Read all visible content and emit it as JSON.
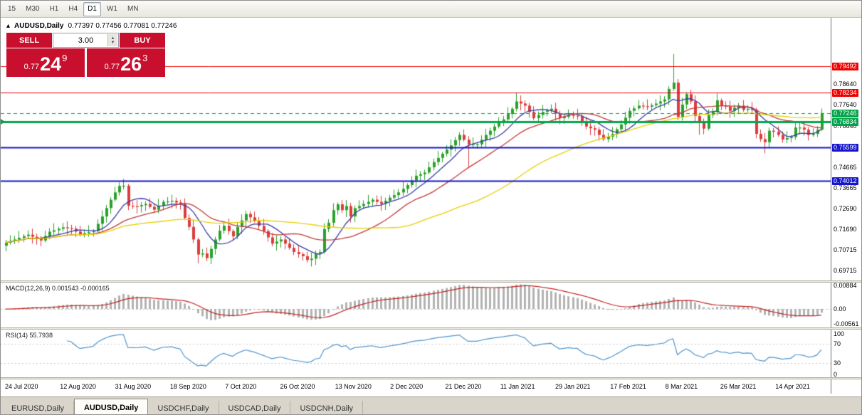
{
  "toolbar": {
    "timeframes": [
      "15",
      "M30",
      "H1",
      "H4",
      "D1",
      "W1",
      "MN"
    ],
    "active": "D1"
  },
  "chart_header": {
    "collapse_icon": "▴",
    "title": "AUDUSD,Daily",
    "ohlc": "0.77397 0.77456 0.77081 0.77246"
  },
  "trade_panel": {
    "sell_label": "SELL",
    "buy_label": "BUY",
    "lots": "3.00",
    "sell_price": {
      "small": "0.77",
      "big": "24",
      "sup": "9"
    },
    "buy_price": {
      "small": "0.77",
      "big": "26",
      "sup": "3"
    },
    "panel_color": "#c8102e"
  },
  "colors": {
    "up": "#2ba12b",
    "down": "#dc3c3c",
    "macd_bar": "#b2b2b2",
    "macd_signal": "#c32222",
    "rsi_line": "#4f94cd"
  },
  "chart_data": {
    "type": "candlestick+indicators",
    "symbol": "AUDUSD",
    "timeframe": "Daily",
    "main": {
      "ylim": [
        0.6924,
        0.818
      ],
      "first_open": 0.709,
      "closes": [
        0.7105,
        0.7113,
        0.712,
        0.7128,
        0.7136,
        0.7143,
        0.7133,
        0.7124,
        0.7115,
        0.7136,
        0.7157,
        0.7164,
        0.7171,
        0.7178,
        0.7175,
        0.7172,
        0.7158,
        0.7145,
        0.715,
        0.7155,
        0.716,
        0.7195,
        0.723,
        0.727,
        0.731,
        0.7345,
        0.7376,
        0.7377,
        0.7281,
        0.7279,
        0.7278,
        0.7284,
        0.729,
        0.7276,
        0.7262,
        0.7281,
        0.73,
        0.7302,
        0.7305,
        0.7297,
        0.729,
        0.7223,
        0.718,
        0.712,
        0.7048,
        0.7053,
        0.7031,
        0.7075,
        0.712,
        0.7162,
        0.7186,
        0.716,
        0.7135,
        0.718,
        0.7211,
        0.7242,
        0.7226,
        0.721,
        0.7185,
        0.716,
        0.713,
        0.71,
        0.711,
        0.712,
        0.71,
        0.708,
        0.706,
        0.705,
        0.704,
        0.7022,
        0.7028,
        0.7053,
        0.706,
        0.717,
        0.72,
        0.726,
        0.7288,
        0.726,
        0.728,
        0.723,
        0.727,
        0.728,
        0.729,
        0.73,
        0.731,
        0.73,
        0.729,
        0.7305,
        0.732,
        0.7332,
        0.7345,
        0.7362,
        0.738,
        0.7402,
        0.7425,
        0.7432,
        0.744,
        0.7465,
        0.749,
        0.751,
        0.753,
        0.755,
        0.757,
        0.7595,
        0.762,
        0.7597,
        0.7575,
        0.7575,
        0.7575,
        0.7597,
        0.762,
        0.764,
        0.766,
        0.7677,
        0.7694,
        0.772,
        0.7745,
        0.778,
        0.777,
        0.776,
        0.773,
        0.77,
        0.7715,
        0.773,
        0.7737,
        0.7745,
        0.7722,
        0.77,
        0.7707,
        0.7715,
        0.7712,
        0.771,
        0.7685,
        0.766,
        0.7652,
        0.7645,
        0.762,
        0.76,
        0.7612,
        0.7625,
        0.7647,
        0.767,
        0.7702,
        0.7735,
        0.7747,
        0.776,
        0.7757,
        0.7755,
        0.7762,
        0.777,
        0.778,
        0.779,
        0.784,
        0.787,
        0.7706,
        0.7765,
        0.7815,
        0.778,
        0.771,
        0.7685,
        0.765,
        0.7715,
        0.773,
        0.7785,
        0.776,
        0.7755,
        0.7735,
        0.775,
        0.776,
        0.774,
        0.7745,
        0.774,
        0.7625,
        0.76,
        0.7585,
        0.764,
        0.7635,
        0.762,
        0.7598,
        0.7605,
        0.761,
        0.7655,
        0.7655,
        0.7645,
        0.762,
        0.7625,
        0.7645,
        0.77246
      ],
      "wick_pattern": [
        0.0013,
        0.0027,
        0.0017,
        0.0033,
        0.0009,
        0.0021,
        0.0029,
        0.0015
      ],
      "wick_overrides": {
        "44": {
          "low": 0.7006
        },
        "46": {
          "low": 0.7016
        },
        "70": {
          "low": 0.6991
        },
        "106": {
          "low": 0.7462
        },
        "117": {
          "high": 0.782
        },
        "153": {
          "high": 0.8007
        },
        "159": {
          "low": 0.7621
        },
        "174": {
          "low": 0.7532
        },
        "187": {
          "high": 0.7746,
          "low": 0.7638
        }
      },
      "ma": [
        {
          "period": 8,
          "color": "#3a3aa8"
        },
        {
          "period": 20,
          "color": "#c23a3a"
        },
        {
          "period": 50,
          "color": "#e6cf00"
        }
      ],
      "hlines": [
        {
          "price": 0.79492,
          "label": "0.79492",
          "color": "#f20000",
          "badge": "#f20000",
          "width": 1,
          "marker": false
        },
        {
          "price": 0.78234,
          "label": "0.78234",
          "color": "#f20000",
          "badge": "#f20000",
          "width": 1,
          "marker": false
        },
        {
          "price": 0.76834,
          "label": "0.76834",
          "color": "#00a44a",
          "badge": "#00a44a",
          "width": 3,
          "marker": true
        },
        {
          "price": 0.75599,
          "label": "0.75599",
          "color": "#1515cd",
          "badge": "#1515cd",
          "width": 2,
          "marker": false
        },
        {
          "price": 0.74012,
          "label": "0.74012",
          "color": "#1515cd",
          "badge": "#1515cd",
          "width": 2,
          "marker": false
        }
      ],
      "current_price": {
        "value": 0.77246,
        "label": "0.77246",
        "color": "#00a44a"
      },
      "ticks": [
        "0.78640",
        "0.77640",
        "0.76640",
        "0.74665",
        "0.73665",
        "0.72690",
        "0.71690",
        "0.70715",
        "0.69715"
      ]
    },
    "macd": {
      "label": "MACD(12,26,9) 0.001543 -0.000165",
      "params": [
        12,
        26,
        9
      ],
      "ylim": [
        -0.007,
        0.01
      ],
      "ticks": [
        "0.00884",
        "0.00",
        "-0.00561"
      ],
      "tick_values": [
        0.00884,
        0,
        -0.00561
      ]
    },
    "rsi": {
      "label": "RSI(14) 55.7938",
      "period": 14,
      "ylim": [
        0,
        100
      ],
      "ticks": [
        "100",
        "70",
        "30",
        "0"
      ],
      "tick_values": [
        100,
        70,
        30,
        0
      ],
      "levels": [
        70,
        30
      ]
    },
    "dates": [
      "24 Jul 2020",
      "12 Aug 2020",
      "31 Aug 2020",
      "18 Sep 2020",
      "7 Oct 2020",
      "26 Oct 2020",
      "13 Nov 2020",
      "2 Dec 2020",
      "21 Dec 2020",
      "11 Jan 2021",
      "29 Jan 2021",
      "17 Feb 2021",
      "8 Mar 2021",
      "26 Mar 2021",
      "14 Apr 2021"
    ]
  },
  "tabs": {
    "items": [
      "EURUSD,Daily",
      "AUDUSD,Daily",
      "USDCHF,Daily",
      "USDCAD,Daily",
      "USDCNH,Daily"
    ],
    "active_index": 1
  }
}
